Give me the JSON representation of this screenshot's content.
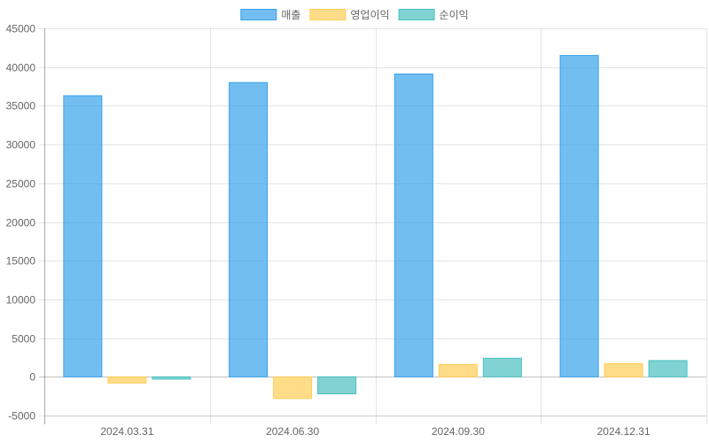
{
  "chart_data": {
    "type": "bar",
    "title": "",
    "xlabel": "",
    "ylabel": "",
    "categories": [
      "2024.03.31",
      "2024.06.30",
      "2024.09.30",
      "2024.12.31"
    ],
    "series": [
      {
        "name": "매출",
        "values": [
          36300,
          38000,
          39100,
          41500
        ],
        "color": "#36a2eb"
      },
      {
        "name": "영업이익",
        "values": [
          -800,
          -2800,
          1600,
          1700
        ],
        "color": "#ffcd56"
      },
      {
        "name": "순이익",
        "values": [
          -300,
          -2200,
          2400,
          2100
        ],
        "color": "#4bc0c0"
      }
    ],
    "ylim": [
      -5000,
      45000
    ],
    "yticks": [
      "45000",
      "40000",
      "35000",
      "30000",
      "25000",
      "20000",
      "15000",
      "10000",
      "5000",
      "0",
      "-5000"
    ],
    "grid": true,
    "legend_position": "top"
  }
}
